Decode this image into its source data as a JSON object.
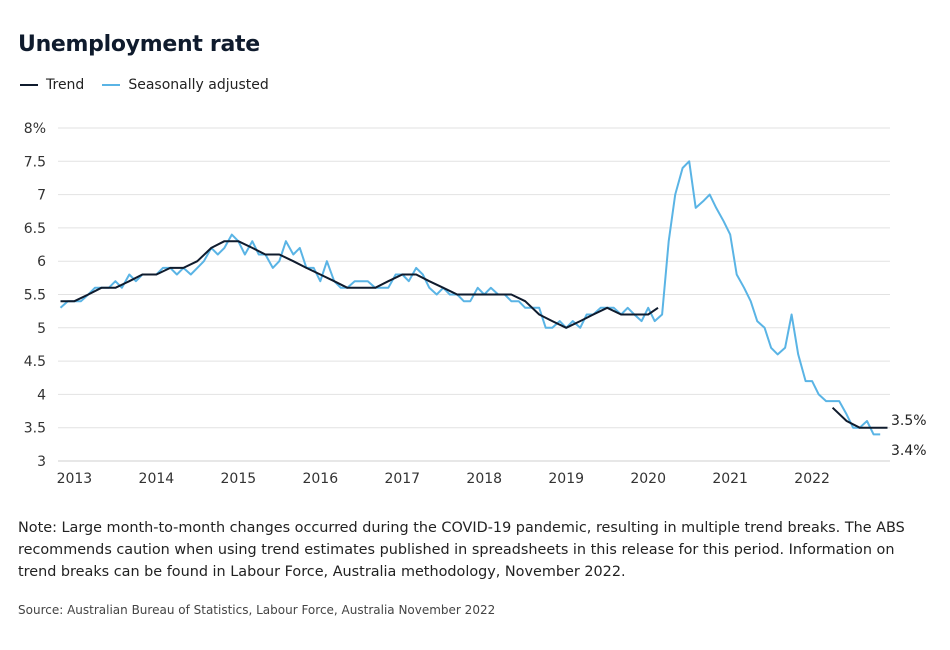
{
  "chart_data": {
    "type": "line",
    "title": "Unemployment rate",
    "xlabel": "",
    "ylabel": "",
    "ylim": [
      3,
      8
    ],
    "xlim": [
      2012.8,
      2022.95
    ],
    "y_ticks": [
      "8%",
      "7.5",
      "7",
      "6.5",
      "6",
      "5.5",
      "5",
      "4.5",
      "4",
      "3.5",
      "3"
    ],
    "x_ticks": [
      "2013",
      "2014",
      "2015",
      "2016",
      "2017",
      "2018",
      "2019",
      "2020",
      "2021",
      "2022"
    ],
    "grid": "horizontal",
    "legend_position": "top-left",
    "series": [
      {
        "name": "Trend",
        "color": "#0f1b2d",
        "segments": [
          [
            [
              2012.83,
              5.4
            ],
            [
              2013.0,
              5.4
            ],
            [
              2013.17,
              5.5
            ],
            [
              2013.33,
              5.6
            ],
            [
              2013.5,
              5.6
            ],
            [
              2013.67,
              5.7
            ],
            [
              2013.83,
              5.8
            ],
            [
              2014.0,
              5.8
            ],
            [
              2014.17,
              5.9
            ],
            [
              2014.33,
              5.9
            ],
            [
              2014.5,
              6.0
            ],
            [
              2014.67,
              6.2
            ],
            [
              2014.83,
              6.3
            ],
            [
              2015.0,
              6.3
            ],
            [
              2015.17,
              6.2
            ],
            [
              2015.33,
              6.1
            ],
            [
              2015.5,
              6.1
            ],
            [
              2015.67,
              6.0
            ],
            [
              2015.83,
              5.9
            ],
            [
              2016.0,
              5.8
            ],
            [
              2016.17,
              5.7
            ],
            [
              2016.33,
              5.6
            ],
            [
              2016.5,
              5.6
            ],
            [
              2016.67,
              5.6
            ],
            [
              2016.83,
              5.7
            ],
            [
              2017.0,
              5.8
            ],
            [
              2017.17,
              5.8
            ],
            [
              2017.33,
              5.7
            ],
            [
              2017.5,
              5.6
            ],
            [
              2017.67,
              5.5
            ],
            [
              2017.83,
              5.5
            ],
            [
              2018.0,
              5.5
            ],
            [
              2018.17,
              5.5
            ],
            [
              2018.33,
              5.5
            ],
            [
              2018.5,
              5.4
            ],
            [
              2018.67,
              5.2
            ],
            [
              2018.83,
              5.1
            ],
            [
              2019.0,
              5.0
            ],
            [
              2019.17,
              5.1
            ],
            [
              2019.33,
              5.2
            ],
            [
              2019.5,
              5.3
            ],
            [
              2019.67,
              5.2
            ],
            [
              2019.83,
              5.2
            ],
            [
              2020.0,
              5.2
            ],
            [
              2020.12,
              5.3
            ]
          ],
          [
            [
              2022.25,
              3.8
            ],
            [
              2022.42,
              3.6
            ],
            [
              2022.58,
              3.5
            ],
            [
              2022.75,
              3.5
            ],
            [
              2022.92,
              3.5
            ]
          ]
        ]
      },
      {
        "name": "Seasonally adjusted",
        "color": "#5ab4e5",
        "segments": [
          [
            [
              2012.83,
              5.3
            ],
            [
              2012.92,
              5.4
            ],
            [
              2013.0,
              5.4
            ],
            [
              2013.08,
              5.4
            ],
            [
              2013.17,
              5.5
            ],
            [
              2013.25,
              5.6
            ],
            [
              2013.33,
              5.6
            ],
            [
              2013.42,
              5.6
            ],
            [
              2013.5,
              5.7
            ],
            [
              2013.58,
              5.6
            ],
            [
              2013.67,
              5.8
            ],
            [
              2013.75,
              5.7
            ],
            [
              2013.83,
              5.8
            ],
            [
              2013.92,
              5.8
            ],
            [
              2014.0,
              5.8
            ],
            [
              2014.08,
              5.9
            ],
            [
              2014.17,
              5.9
            ],
            [
              2014.25,
              5.8
            ],
            [
              2014.33,
              5.9
            ],
            [
              2014.42,
              5.8
            ],
            [
              2014.5,
              5.9
            ],
            [
              2014.58,
              6.0
            ],
            [
              2014.67,
              6.2
            ],
            [
              2014.75,
              6.1
            ],
            [
              2014.83,
              6.2
            ],
            [
              2014.92,
              6.4
            ],
            [
              2015.0,
              6.3
            ],
            [
              2015.08,
              6.1
            ],
            [
              2015.17,
              6.3
            ],
            [
              2015.25,
              6.1
            ],
            [
              2015.33,
              6.1
            ],
            [
              2015.42,
              5.9
            ],
            [
              2015.5,
              6.0
            ],
            [
              2015.58,
              6.3
            ],
            [
              2015.67,
              6.1
            ],
            [
              2015.75,
              6.2
            ],
            [
              2015.83,
              5.9
            ],
            [
              2015.92,
              5.9
            ],
            [
              2016.0,
              5.7
            ],
            [
              2016.08,
              6.0
            ],
            [
              2016.17,
              5.7
            ],
            [
              2016.25,
              5.6
            ],
            [
              2016.33,
              5.6
            ],
            [
              2016.42,
              5.7
            ],
            [
              2016.5,
              5.7
            ],
            [
              2016.58,
              5.7
            ],
            [
              2016.67,
              5.6
            ],
            [
              2016.75,
              5.6
            ],
            [
              2016.83,
              5.6
            ],
            [
              2016.92,
              5.8
            ],
            [
              2017.0,
              5.8
            ],
            [
              2017.08,
              5.7
            ],
            [
              2017.17,
              5.9
            ],
            [
              2017.25,
              5.8
            ],
            [
              2017.33,
              5.6
            ],
            [
              2017.42,
              5.5
            ],
            [
              2017.5,
              5.6
            ],
            [
              2017.58,
              5.5
            ],
            [
              2017.67,
              5.5
            ],
            [
              2017.75,
              5.4
            ],
            [
              2017.83,
              5.4
            ],
            [
              2017.92,
              5.6
            ],
            [
              2018.0,
              5.5
            ],
            [
              2018.08,
              5.6
            ],
            [
              2018.17,
              5.5
            ],
            [
              2018.25,
              5.5
            ],
            [
              2018.33,
              5.4
            ],
            [
              2018.42,
              5.4
            ],
            [
              2018.5,
              5.3
            ],
            [
              2018.58,
              5.3
            ],
            [
              2018.67,
              5.3
            ],
            [
              2018.75,
              5.0
            ],
            [
              2018.83,
              5.0
            ],
            [
              2018.92,
              5.1
            ],
            [
              2019.0,
              5.0
            ],
            [
              2019.08,
              5.1
            ],
            [
              2019.17,
              5.0
            ],
            [
              2019.25,
              5.2
            ],
            [
              2019.33,
              5.2
            ],
            [
              2019.42,
              5.3
            ],
            [
              2019.5,
              5.3
            ],
            [
              2019.58,
              5.3
            ],
            [
              2019.67,
              5.2
            ],
            [
              2019.75,
              5.3
            ],
            [
              2019.83,
              5.2
            ],
            [
              2019.92,
              5.1
            ],
            [
              2020.0,
              5.3
            ],
            [
              2020.08,
              5.1
            ],
            [
              2020.17,
              5.2
            ],
            [
              2020.25,
              6.3
            ],
            [
              2020.33,
              7.0
            ],
            [
              2020.42,
              7.4
            ],
            [
              2020.5,
              7.5
            ],
            [
              2020.58,
              6.8
            ],
            [
              2020.67,
              6.9
            ],
            [
              2020.75,
              7.0
            ],
            [
              2020.83,
              6.8
            ],
            [
              2020.92,
              6.6
            ],
            [
              2021.0,
              6.4
            ],
            [
              2021.08,
              5.8
            ],
            [
              2021.17,
              5.6
            ],
            [
              2021.25,
              5.4
            ],
            [
              2021.33,
              5.1
            ],
            [
              2021.42,
              5.0
            ],
            [
              2021.5,
              4.7
            ],
            [
              2021.58,
              4.6
            ],
            [
              2021.67,
              4.7
            ],
            [
              2021.75,
              5.2
            ],
            [
              2021.83,
              4.6
            ],
            [
              2021.92,
              4.2
            ],
            [
              2022.0,
              4.2
            ],
            [
              2022.08,
              4.0
            ],
            [
              2022.17,
              3.9
            ],
            [
              2022.25,
              3.9
            ],
            [
              2022.33,
              3.9
            ],
            [
              2022.42,
              3.7
            ],
            [
              2022.5,
              3.5
            ],
            [
              2022.58,
              3.5
            ],
            [
              2022.67,
              3.6
            ],
            [
              2022.75,
              3.4
            ],
            [
              2022.83,
              3.4
            ]
          ]
        ]
      }
    ],
    "end_labels": [
      "3.5%",
      "3.4%"
    ]
  },
  "note": "Note: Large month-to-month changes occurred during the COVID-19 pandemic, resulting in multiple trend breaks. The ABS recommends caution when using trend estimates published in spreadsheets in this release for this period. Information on trend breaks can be found in Labour Force, Australia methodology, November 2022.",
  "source": "Source: Australian Bureau of Statistics, Labour Force, Australia November 2022"
}
